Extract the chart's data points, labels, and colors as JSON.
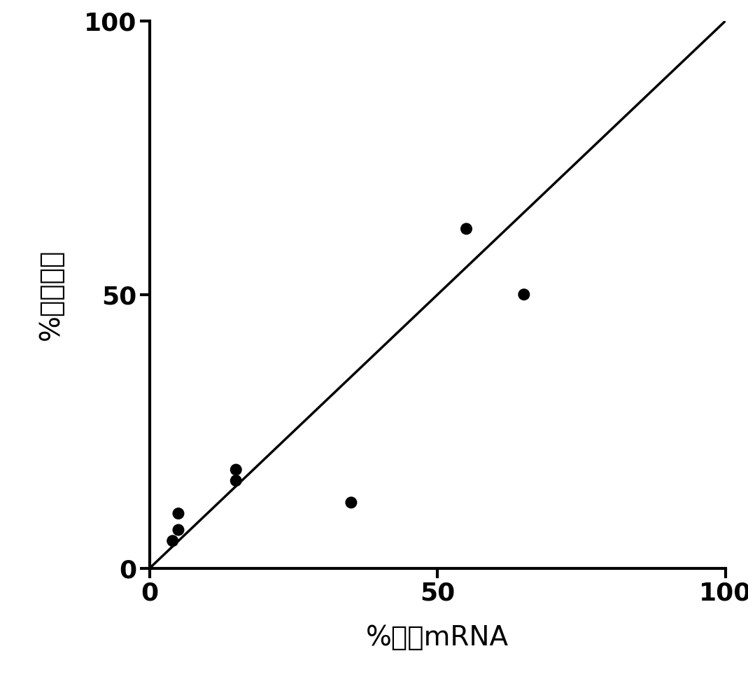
{
  "scatter_x": [
    5,
    5,
    4,
    15,
    15,
    35,
    55,
    65
  ],
  "scatter_y": [
    10,
    7,
    5,
    18,
    16,
    12,
    62,
    50
  ],
  "line_x": [
    0,
    100
  ],
  "line_y": [
    0,
    100
  ],
  "xlim": [
    0,
    100
  ],
  "ylim": [
    0,
    100
  ],
  "xticks": [
    0,
    50,
    100
  ],
  "yticks": [
    0,
    50,
    100
  ],
  "xlabel": "%对照mRNA",
  "ylabel": "%对照生长",
  "marker_size": 150,
  "marker_color": "#000000",
  "line_color": "#000000",
  "line_width": 2.5,
  "background_color": "#ffffff",
  "tick_fontsize": 26,
  "label_fontsize": 28,
  "spine_linewidth": 3.0
}
